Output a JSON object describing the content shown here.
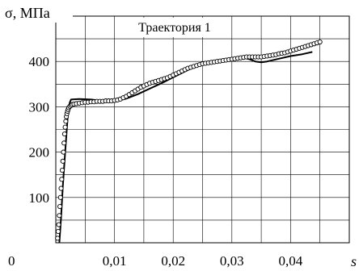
{
  "chart_data": {
    "type": "line",
    "title": "",
    "xlabel": "s",
    "ylabel": "σ, МПа",
    "xlim": [
      0,
      0.05
    ],
    "ylim": [
      0,
      500
    ],
    "grid": true,
    "xticks": [
      0,
      0.01,
      0.02,
      0.03,
      0.04
    ],
    "xtick_labels": [
      "0",
      "0,01",
      "0,02",
      "0,03",
      "0,04"
    ],
    "yticks": [
      100,
      200,
      300,
      400
    ],
    "ytick_labels": [
      "100",
      "200",
      "300",
      "400"
    ],
    "legend_label": "Траектория 1",
    "legend_placement": "top-center",
    "series": [
      {
        "style": "solid-line",
        "color": "#000000",
        "x": [
          0.0006,
          0.0009,
          0.0012,
          0.0016,
          0.0019,
          0.0021,
          0.0024,
          0.0026,
          0.004,
          0.006,
          0.008,
          0.01,
          0.012,
          0.014,
          0.016,
          0.018,
          0.02,
          0.022,
          0.024,
          0.026,
          0.028,
          0.03,
          0.031,
          0.032,
          0.033,
          0.034,
          0.035,
          0.036,
          0.038,
          0.04,
          0.042,
          0.0437
        ],
        "y": [
          0,
          55,
          125,
          200,
          255,
          290,
          310,
          316,
          317,
          316,
          313,
          312,
          318,
          328,
          340,
          352,
          365,
          378,
          390,
          396,
          400,
          404,
          407,
          408,
          405,
          400,
          398,
          400,
          406,
          412,
          416,
          421
        ]
      },
      {
        "style": "open-circles",
        "color": "#000000",
        "x": [
          0.0003,
          0.0004,
          0.0005,
          0.0006,
          0.0007,
          0.0008,
          0.0009,
          0.001,
          0.0011,
          0.0012,
          0.0013,
          0.0014,
          0.0015,
          0.0016,
          0.0017,
          0.0018,
          0.0019,
          0.002,
          0.0021,
          0.0022,
          0.0024,
          0.0026,
          0.0028,
          0.0031,
          0.0035,
          0.004,
          0.0045,
          0.005,
          0.0055,
          0.006,
          0.0065,
          0.007,
          0.0075,
          0.008,
          0.0085,
          0.009,
          0.0095,
          0.01,
          0.0105,
          0.011,
          0.0115,
          0.012,
          0.0125,
          0.013,
          0.0135,
          0.014,
          0.0145,
          0.015,
          0.0155,
          0.016,
          0.0165,
          0.017,
          0.0175,
          0.018,
          0.0185,
          0.019,
          0.0195,
          0.02,
          0.0205,
          0.021,
          0.0215,
          0.022,
          0.0225,
          0.023,
          0.0235,
          0.024,
          0.0245,
          0.025,
          0.0255,
          0.026,
          0.0265,
          0.027,
          0.0275,
          0.028,
          0.0285,
          0.029,
          0.0295,
          0.03,
          0.0305,
          0.031,
          0.0315,
          0.032,
          0.0325,
          0.033,
          0.0335,
          0.034,
          0.0345,
          0.035,
          0.0355,
          0.036,
          0.0365,
          0.037,
          0.0375,
          0.038,
          0.0385,
          0.039,
          0.0395,
          0.04,
          0.0405,
          0.041,
          0.0415,
          0.042,
          0.0425,
          0.043,
          0.0435,
          0.044,
          0.0445,
          0.045
        ],
        "y": [
          10,
          25,
          40,
          60,
          80,
          100,
          120,
          140,
          160,
          180,
          200,
          220,
          240,
          255,
          268,
          278,
          285,
          290,
          294,
          298,
          301,
          303,
          305,
          306,
          307,
          308,
          309,
          310,
          310,
          311,
          311,
          312,
          312,
          312,
          313,
          313,
          313,
          314,
          315,
          317,
          320,
          323,
          327,
          331,
          335,
          339,
          343,
          346,
          349,
          352,
          354,
          356,
          358,
          360,
          362,
          364,
          367,
          370,
          373,
          376,
          379,
          382,
          385,
          387,
          389,
          391,
          393,
          395,
          396,
          397,
          398,
          399,
          400,
          401,
          402,
          403,
          404,
          405,
          406,
          407,
          408,
          409,
          410,
          410,
          410,
          410,
          410,
          410,
          411,
          412,
          413,
          414,
          415,
          417,
          418,
          419,
          421,
          423,
          425,
          427,
          429,
          431,
          433,
          435,
          437,
          439,
          441,
          443
        ]
      }
    ]
  }
}
